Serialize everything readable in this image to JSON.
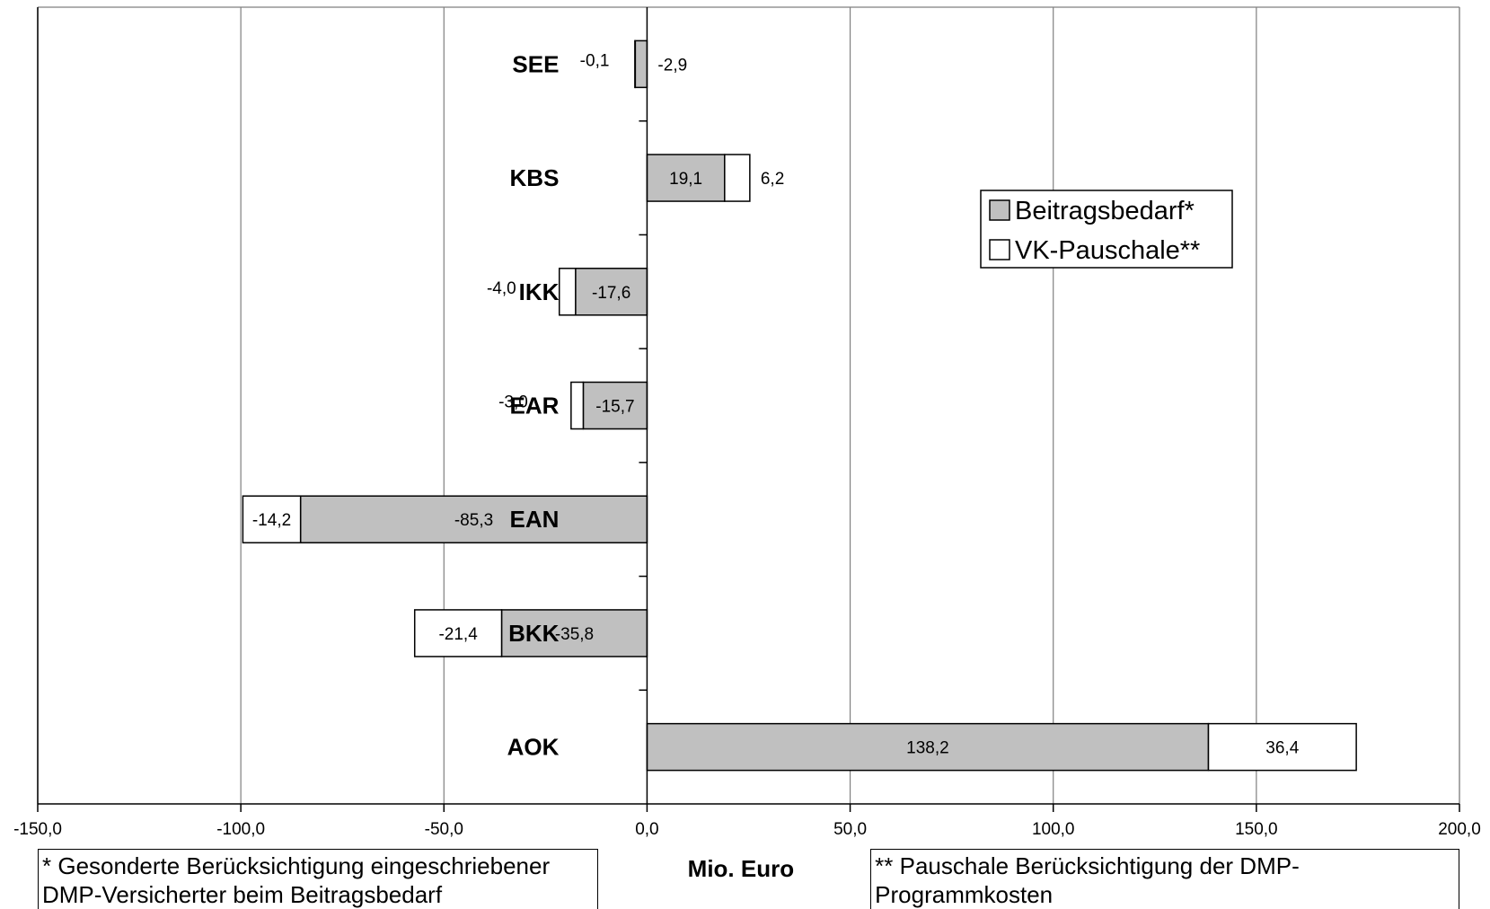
{
  "chart_data": {
    "type": "bar",
    "orientation": "horizontal",
    "stacked": true,
    "categories": [
      "SEE",
      "KBS",
      "IKK",
      "EAR",
      "EAN",
      "BKK",
      "AOK"
    ],
    "series": [
      {
        "name": "Beitragsbedarf*",
        "color": "#c0c0c0",
        "values": [
          -2.9,
          19.1,
          -17.6,
          -15.7,
          -85.3,
          -35.8,
          138.2
        ]
      },
      {
        "name": "VK-Pauschale**",
        "color": "#ffffff",
        "values": [
          -0.1,
          6.2,
          -4.0,
          -3.0,
          -14.2,
          -21.4,
          36.4
        ]
      }
    ],
    "data_labels": {
      "Beitragsbedarf*": [
        "-2,9",
        "19,1",
        "-17,6",
        "-15,7",
        "-85,3",
        "-35,8",
        "138,2"
      ],
      "VK-Pauschale**": [
        "-0,1",
        "6,2",
        "-4,0",
        "-3,0",
        "-14,2",
        "-21,4",
        "36,4"
      ]
    },
    "xlim": [
      -150,
      200
    ],
    "xticks": [
      -150,
      -100,
      -50,
      0,
      50,
      100,
      150,
      200
    ],
    "xtick_labels": [
      "-150,0",
      "-100,0",
      "-50,0",
      "0,0",
      "50,0",
      "100,0",
      "150,0",
      "200,0"
    ],
    "xlabel": "Mio. Euro",
    "grid": "vertical",
    "legend_position": "top-right"
  },
  "notes": {
    "left": [
      "* Gesonderte Berücksichtigung eingeschriebener",
      "DMP-Versicherter beim Beitragsbedarf"
    ],
    "right": [
      "** Pauschale Berücksichtigung der DMP-",
      "Programmkosten"
    ]
  }
}
